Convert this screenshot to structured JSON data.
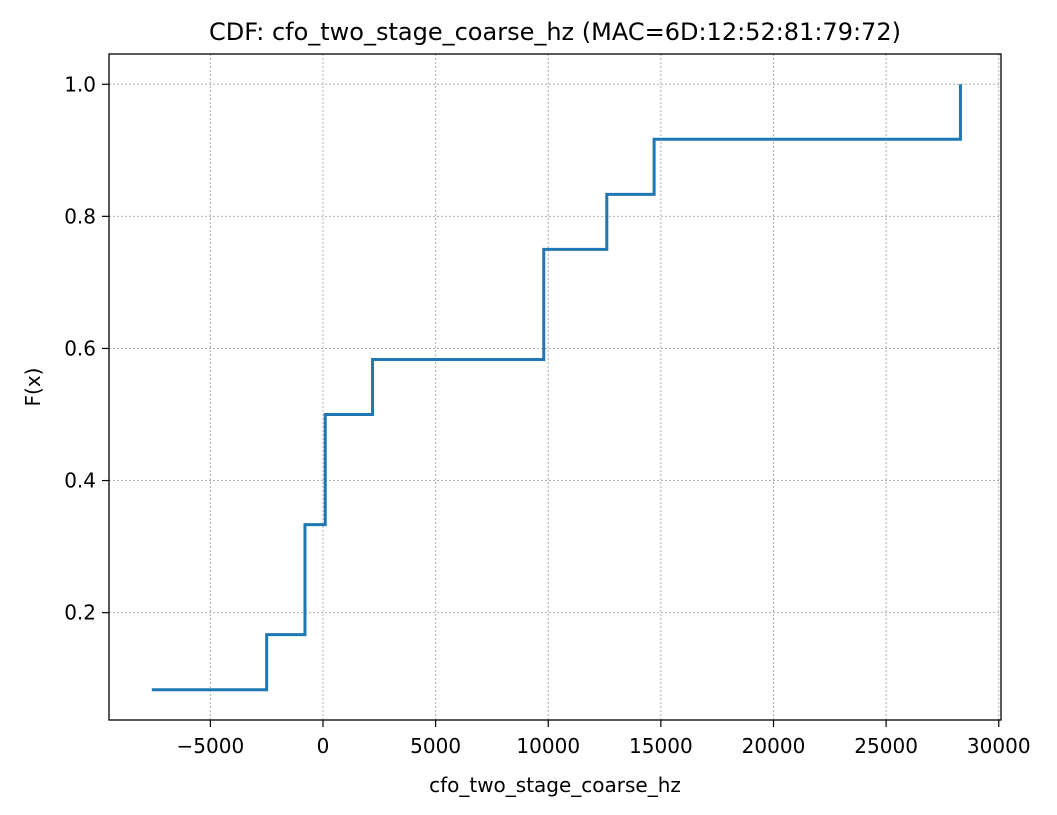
{
  "chart_data": {
    "type": "line",
    "step": true,
    "title": "CDF: cfo_two_stage_coarse_hz (MAC=6D:12:52:81:79:72)",
    "xlabel": "cfo_two_stage_coarse_hz",
    "ylabel": "F(x)",
    "xlim": [
      -9500,
      30100
    ],
    "ylim": [
      0.0375,
      1.0458
    ],
    "grid": true,
    "x_ticks": [
      {
        "value": -5000,
        "label": "−5000"
      },
      {
        "value": 0,
        "label": "0"
      },
      {
        "value": 5000,
        "label": "5000"
      },
      {
        "value": 10000,
        "label": "10000"
      },
      {
        "value": 15000,
        "label": "15000"
      },
      {
        "value": 20000,
        "label": "20000"
      },
      {
        "value": 25000,
        "label": "25000"
      },
      {
        "value": 30000,
        "label": "30000"
      }
    ],
    "y_ticks": [
      {
        "value": 0.2,
        "label": "0.2"
      },
      {
        "value": 0.4,
        "label": "0.4"
      },
      {
        "value": 0.6,
        "label": "0.6"
      },
      {
        "value": 0.8,
        "label": "0.8"
      },
      {
        "value": 1.0,
        "label": "1.0"
      }
    ],
    "series": [
      {
        "color": "#1f77b4",
        "x": [
          -7600,
          -2500,
          -800,
          100,
          2200,
          9800,
          12600,
          14700,
          28300
        ],
        "y": [
          0.0833,
          0.1667,
          0.3333,
          0.5,
          0.5833,
          0.75,
          0.8333,
          0.9167,
          1.0
        ]
      }
    ]
  }
}
